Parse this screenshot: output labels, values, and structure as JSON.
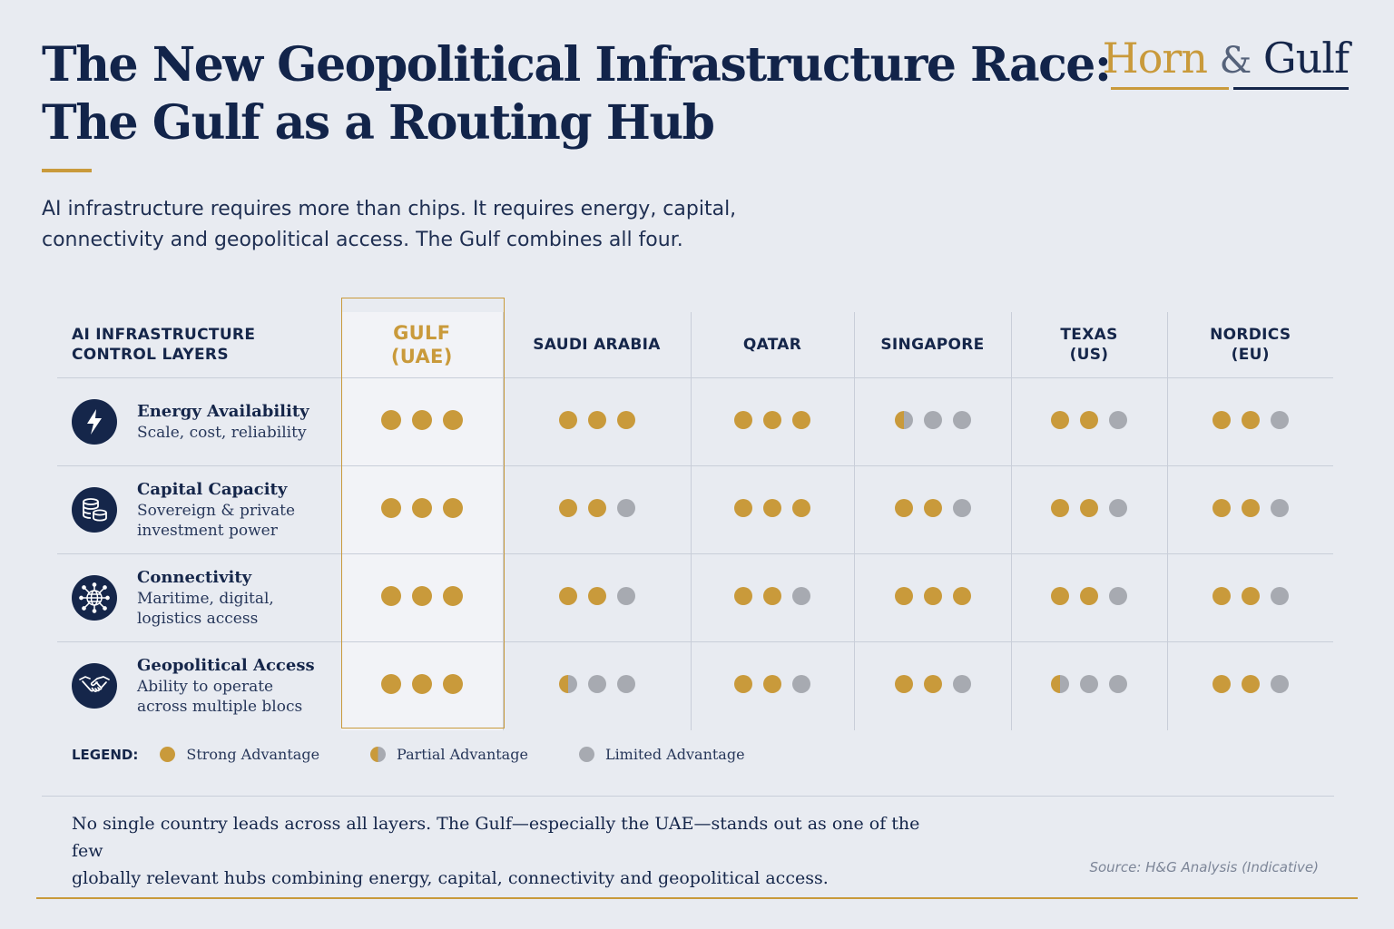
{
  "header": {
    "title_lines": [
      "The New Geopolitical Infrastructure Race:",
      "The Gulf as a Routing Hub"
    ],
    "brand": {
      "part1": "Horn",
      "amp": "&",
      "part2": "Gulf"
    },
    "subtitle_lines": [
      "AI infrastructure requires more than chips. It requires energy, capital,",
      "connectivity and geopolitical access. The Gulf combines all four."
    ]
  },
  "colors": {
    "accent_gold": "#c99a3b",
    "navy": "#15264a",
    "limited_gray": "#a7aab1"
  },
  "matrix": {
    "layer_header_lines": [
      "AI INFRASTRUCTURE",
      "CONTROL LAYERS"
    ],
    "columns": [
      {
        "lines": [
          "GULF",
          "(UAE)"
        ],
        "highlighted": true
      },
      {
        "lines": [
          "SAUDI ARABIA"
        ]
      },
      {
        "lines": [
          "QATAR"
        ]
      },
      {
        "lines": [
          "SINGAPORE"
        ]
      },
      {
        "lines": [
          "TEXAS",
          "(US)"
        ]
      },
      {
        "lines": [
          "NORDICS",
          "(EU)"
        ]
      }
    ],
    "rows": [
      {
        "name": "Energy Availability",
        "desc": "Scale, cost, reliability",
        "icon": "lightning-icon",
        "scores": [
          [
            "strong",
            "strong",
            "strong"
          ],
          [
            "strong",
            "strong",
            "strong"
          ],
          [
            "strong",
            "strong",
            "strong"
          ],
          [
            "partial",
            "limited",
            "limited"
          ],
          [
            "strong",
            "strong",
            "limited"
          ],
          [
            "strong",
            "strong",
            "limited"
          ]
        ]
      },
      {
        "name": "Capital Capacity",
        "desc": "Sovereign & private investment power",
        "icon": "coins-icon",
        "scores": [
          [
            "strong",
            "strong",
            "strong"
          ],
          [
            "strong",
            "strong",
            "limited"
          ],
          [
            "strong",
            "strong",
            "strong"
          ],
          [
            "strong",
            "strong",
            "limited"
          ],
          [
            "strong",
            "strong",
            "limited"
          ],
          [
            "strong",
            "strong",
            "limited"
          ]
        ]
      },
      {
        "name": "Connectivity",
        "desc": "Maritime, digital, logistics access",
        "icon": "network-globe-icon",
        "scores": [
          [
            "strong",
            "strong",
            "strong"
          ],
          [
            "strong",
            "strong",
            "limited"
          ],
          [
            "strong",
            "strong",
            "limited"
          ],
          [
            "strong",
            "strong",
            "strong"
          ],
          [
            "strong",
            "strong",
            "limited"
          ],
          [
            "strong",
            "strong",
            "limited"
          ]
        ]
      },
      {
        "name": "Geopolitical Access",
        "desc": "Ability to operate across multiple blocs",
        "icon": "handshake-icon",
        "scores": [
          [
            "strong",
            "strong",
            "strong"
          ],
          [
            "partial",
            "limited",
            "limited"
          ],
          [
            "strong",
            "strong",
            "limited"
          ],
          [
            "strong",
            "strong",
            "limited"
          ],
          [
            "partial",
            "limited",
            "limited"
          ],
          [
            "strong",
            "strong",
            "limited"
          ]
        ]
      }
    ]
  },
  "legend": {
    "label": "LEGEND:",
    "items": [
      {
        "type": "strong",
        "label": "Strong Advantage"
      },
      {
        "type": "partial",
        "label": "Partial Advantage"
      },
      {
        "type": "limited",
        "label": "Limited Advantage"
      }
    ]
  },
  "footer": {
    "conclusion_lines": [
      "No single country leads across all layers. The Gulf—especially the UAE—stands out as one of the few",
      "globally relevant hubs combining energy, capital, connectivity and geopolitical access."
    ],
    "source": "Source: H&G Analysis (Indicative)"
  }
}
